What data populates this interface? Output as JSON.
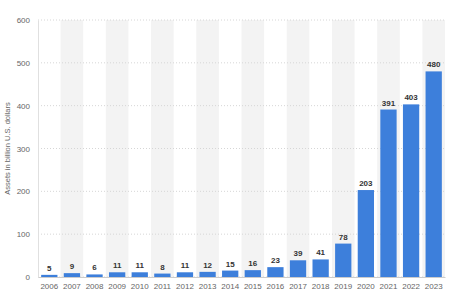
{
  "chart_data": {
    "type": "bar",
    "y_label": "Assets in billion U.S. dollars",
    "categories": [
      "2006",
      "2007",
      "2008",
      "2009",
      "2010",
      "2011",
      "2012",
      "2013",
      "2014",
      "2015",
      "2016",
      "2017",
      "2018",
      "2019",
      "2020",
      "2021",
      "2022",
      "2023"
    ],
    "values": [
      5,
      9,
      6,
      11,
      11,
      8,
      11,
      12,
      15,
      16,
      23,
      39,
      41,
      78,
      203,
      391,
      403,
      480
    ],
    "color": "#3d7fdb",
    "ylim": [
      0,
      600
    ],
    "yticks": [
      0,
      100,
      200,
      300,
      400,
      500,
      600
    ],
    "grid": true,
    "data_labels": true
  }
}
